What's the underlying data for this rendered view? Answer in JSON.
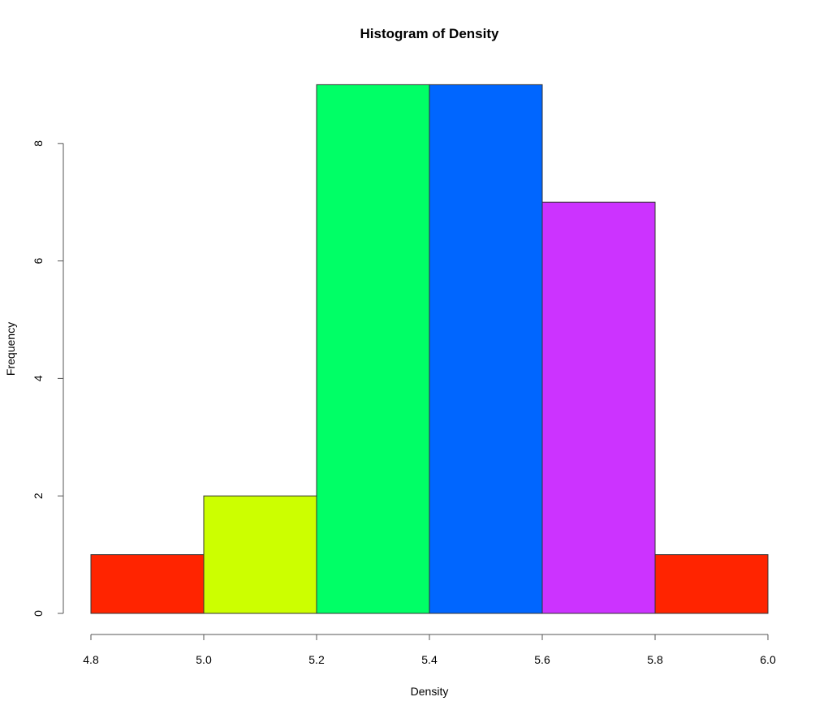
{
  "chart_data": {
    "type": "bar",
    "title": "Histogram of Density",
    "xlabel": "Density",
    "ylabel": "Frequency",
    "bins": [
      {
        "from": 4.8,
        "to": 5.0,
        "count": 1,
        "color": "#ff2400"
      },
      {
        "from": 5.0,
        "to": 5.2,
        "count": 2,
        "color": "#ccff00"
      },
      {
        "from": 5.2,
        "to": 5.4,
        "count": 9,
        "color": "#00ff66"
      },
      {
        "from": 5.4,
        "to": 5.6,
        "count": 9,
        "color": "#0066ff"
      },
      {
        "from": 5.6,
        "to": 5.8,
        "count": 7,
        "color": "#cc33ff"
      },
      {
        "from": 5.8,
        "to": 6.0,
        "count": 1,
        "color": "#ff2400"
      }
    ],
    "xlim": [
      4.8,
      6.0
    ],
    "ylim": [
      0,
      9
    ],
    "x_ticks": [
      "4.8",
      "5.0",
      "5.2",
      "5.4",
      "5.6",
      "5.8",
      "6.0"
    ],
    "y_ticks": [
      "0",
      "2",
      "4",
      "6",
      "8"
    ],
    "grid": false
  }
}
